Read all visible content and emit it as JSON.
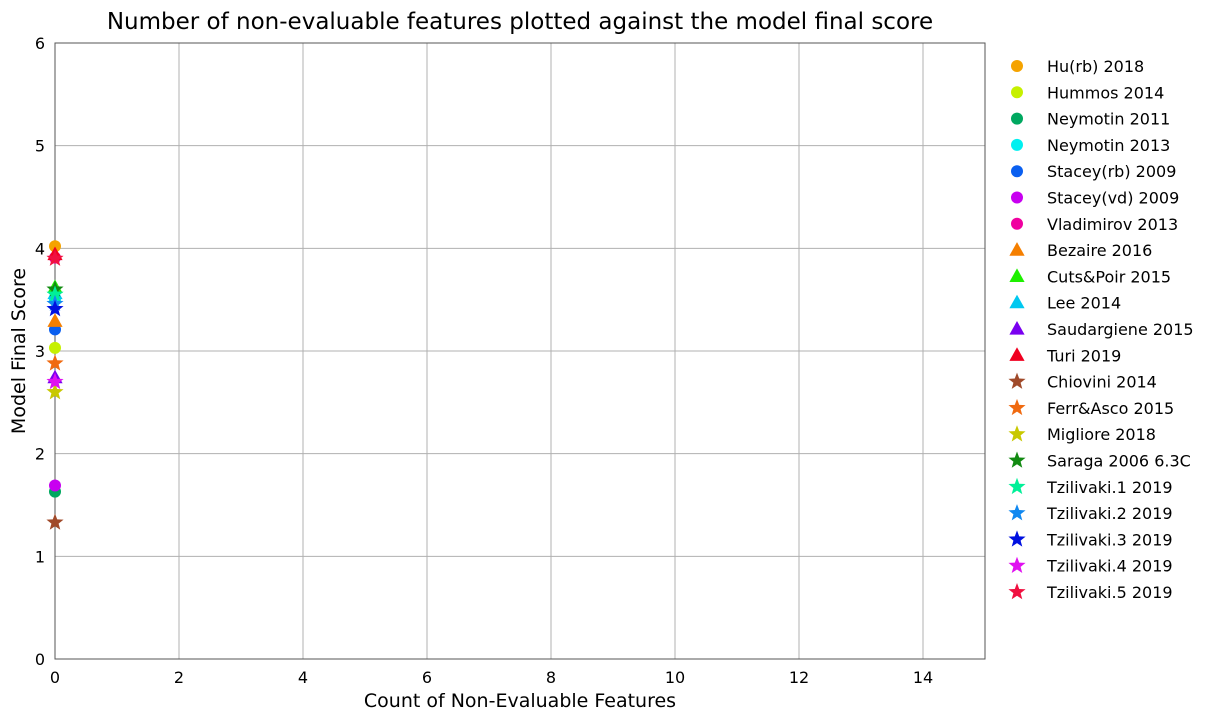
{
  "chart_data": {
    "type": "scatter",
    "title": "Number of non-evaluable features plotted against the model final score",
    "xlabel": "Count of Non-Evaluable Features",
    "ylabel": "Model Final Score",
    "xlim": [
      0,
      15
    ],
    "ylim": [
      0,
      6
    ],
    "xticks": [
      0,
      2,
      4,
      6,
      8,
      10,
      12,
      14
    ],
    "yticks": [
      0,
      1,
      2,
      3,
      4,
      5,
      6
    ],
    "grid": true,
    "legend_position": "right, outside plot",
    "series": [
      {
        "name": "Hu(rb) 2018",
        "marker": "circle",
        "color": "#f5a300",
        "x": [
          0
        ],
        "y": [
          4.02
        ]
      },
      {
        "name": "Hummos 2014",
        "marker": "circle",
        "color": "#c6f000",
        "x": [
          0
        ],
        "y": [
          3.03
        ]
      },
      {
        "name": "Neymotin 2011",
        "marker": "circle",
        "color": "#00a860",
        "x": [
          0
        ],
        "y": [
          1.63
        ]
      },
      {
        "name": "Neymotin 2013",
        "marker": "circle",
        "color": "#00f0f0",
        "x": [
          0
        ],
        "y": [
          3.5
        ]
      },
      {
        "name": "Stacey(rb) 2009",
        "marker": "circle",
        "color": "#0a5ff0",
        "x": [
          0
        ],
        "y": [
          3.21
        ]
      },
      {
        "name": "Stacey(vd) 2009",
        "marker": "circle",
        "color": "#c800f0",
        "x": [
          0
        ],
        "y": [
          1.69
        ]
      },
      {
        "name": "Vladimirov 2013",
        "marker": "circle",
        "color": "#f000a0",
        "x": [
          0
        ],
        "y": [
          3.91
        ]
      },
      {
        "name": "Bezaire 2016",
        "marker": "triangle",
        "color": "#f57f00",
        "x": [
          0
        ],
        "y": [
          3.29
        ]
      },
      {
        "name": "Cuts&Poir 2015",
        "marker": "triangle",
        "color": "#1ef000",
        "x": [
          0
        ],
        "y": [
          3.62
        ]
      },
      {
        "name": "Lee 2014",
        "marker": "triangle",
        "color": "#00c8f0",
        "x": [
          0
        ],
        "y": [
          3.56
        ]
      },
      {
        "name": "Saudargiene 2015",
        "marker": "triangle",
        "color": "#7a00f0",
        "x": [
          0
        ],
        "y": [
          2.74
        ]
      },
      {
        "name": "Turi 2019",
        "marker": "triangle",
        "color": "#f00020",
        "x": [
          0
        ],
        "y": [
          3.94
        ]
      },
      {
        "name": "Chiovini 2014",
        "marker": "star",
        "color": "#a04a2a",
        "x": [
          0
        ],
        "y": [
          1.33
        ]
      },
      {
        "name": "Ferr&Asco 2015",
        "marker": "star",
        "color": "#f06a10",
        "x": [
          0
        ],
        "y": [
          2.88
        ]
      },
      {
        "name": "Migliore 2018",
        "marker": "star",
        "color": "#c8c800",
        "x": [
          0
        ],
        "y": [
          2.6
        ]
      },
      {
        "name": "Saraga 2006 6.3C",
        "marker": "star",
        "color": "#128a12",
        "x": [
          0
        ],
        "y": [
          3.6
        ]
      },
      {
        "name": "Tzilivaki.1 2019",
        "marker": "star",
        "color": "#00f098",
        "x": [
          0
        ],
        "y": [
          3.55
        ]
      },
      {
        "name": "Tzilivaki.2 2019",
        "marker": "star",
        "color": "#1088f0",
        "x": [
          0
        ],
        "y": [
          3.46
        ]
      },
      {
        "name": "Tzilivaki.3 2019",
        "marker": "star",
        "color": "#0010e0",
        "x": [
          0
        ],
        "y": [
          3.41
        ]
      },
      {
        "name": "Tzilivaki.4 2019",
        "marker": "star",
        "color": "#e010f0",
        "x": [
          0
        ],
        "y": [
          2.7
        ]
      },
      {
        "name": "Tzilivaki.5 2019",
        "marker": "star",
        "color": "#f01040",
        "x": [
          0
        ],
        "y": [
          3.9
        ]
      }
    ]
  }
}
